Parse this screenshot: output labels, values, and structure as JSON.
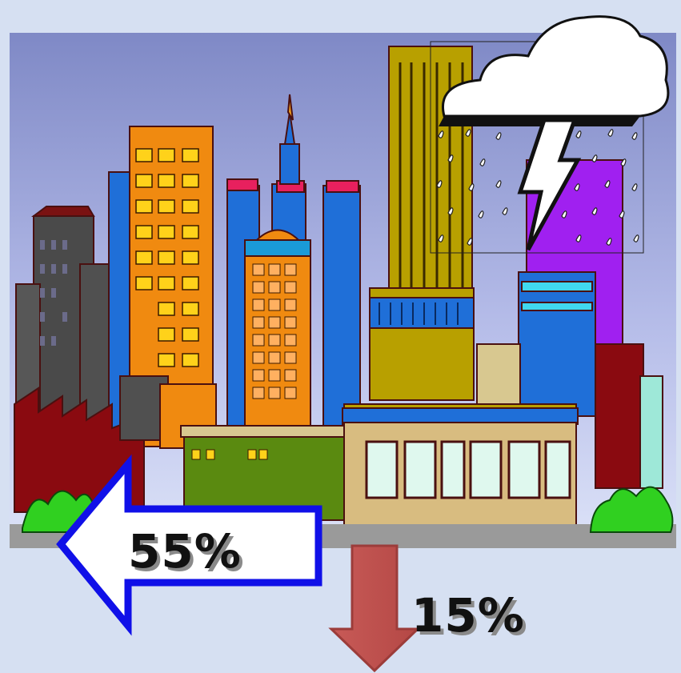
{
  "labels": {
    "left_arrow_value": "55%",
    "down_arrow_value": "15%"
  },
  "colors": {
    "page_background": "#d6e0f2",
    "sky_top": "#7f89c6",
    "sky_bottom": "#dde3f8",
    "left_arrow_fill": "#ffffff",
    "left_arrow_stroke": "#1010e8",
    "down_arrow_fill": "#c0504d",
    "down_arrow_stroke": "#9c3c3a"
  },
  "icons": {
    "cityscape": "city-skyline-icon",
    "storm_cloud": "storm-cloud-icon",
    "lightning": "lightning-bolt-icon",
    "rain": "rain-drops-icon",
    "left_arrow": "arrow-left-icon",
    "down_arrow": "arrow-down-icon"
  }
}
